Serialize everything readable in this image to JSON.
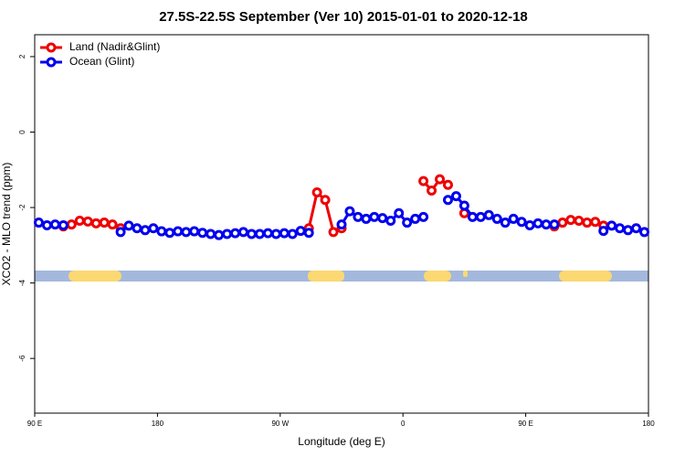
{
  "chart_data": {
    "type": "line",
    "title": "27.5S-22.5S September (Ver 10)   2015-01-01 to 2020-12-18",
    "xlabel": "Longitude (deg E)",
    "ylabel": "XCO2 - MLO trend (ppm)",
    "x": [
      93,
      99,
      105,
      111,
      117,
      123,
      129,
      135,
      141,
      147,
      153,
      159,
      165,
      171,
      177,
      183,
      189,
      195,
      201,
      207,
      213,
      219,
      225,
      231,
      237,
      243,
      249,
      255,
      261,
      267,
      273,
      279,
      285,
      291,
      297,
      303,
      309,
      315,
      321,
      327,
      333,
      339,
      345,
      351,
      357,
      363,
      369,
      375,
      381,
      387,
      393,
      399,
      405,
      411,
      417,
      423,
      429,
      435,
      441,
      447,
      453,
      459,
      465,
      471,
      477,
      483,
      489,
      495,
      501,
      507,
      513,
      519,
      525,
      531,
      537
    ],
    "series": [
      {
        "name": "Land (Nadir&Glint)",
        "color": "#ee0000",
        "values": [
          null,
          null,
          null,
          -2.5,
          -2.45,
          -2.35,
          -2.37,
          -2.42,
          -2.4,
          -2.45,
          -2.55,
          null,
          null,
          null,
          null,
          null,
          null,
          null,
          null,
          null,
          null,
          null,
          null,
          null,
          null,
          null,
          null,
          null,
          null,
          null,
          null,
          null,
          null,
          -2.55,
          -1.6,
          -1.8,
          -2.65,
          -2.55,
          null,
          null,
          null,
          null,
          null,
          null,
          null,
          null,
          null,
          -1.3,
          -1.55,
          -1.25,
          -1.4,
          null,
          -2.15,
          null,
          null,
          null,
          null,
          null,
          null,
          null,
          null,
          null,
          null,
          -2.5,
          -2.4,
          -2.33,
          -2.35,
          -2.4,
          -2.38,
          -2.48,
          null,
          null,
          null,
          null,
          null
        ]
      },
      {
        "name": "Ocean (Glint)",
        "color": "#0000ee",
        "values": [
          -2.4,
          -2.47,
          -2.45,
          -2.47,
          null,
          null,
          null,
          null,
          null,
          null,
          -2.65,
          -2.48,
          -2.55,
          -2.6,
          -2.55,
          -2.63,
          -2.67,
          -2.63,
          -2.65,
          -2.63,
          -2.67,
          -2.7,
          -2.73,
          -2.7,
          -2.68,
          -2.65,
          -2.7,
          -2.7,
          -2.68,
          -2.7,
          -2.68,
          -2.7,
          -2.62,
          -2.67,
          null,
          null,
          null,
          -2.45,
          -2.1,
          -2.25,
          -2.3,
          -2.25,
          -2.28,
          -2.35,
          -2.15,
          -2.4,
          -2.3,
          -2.25,
          null,
          null,
          -1.8,
          -1.7,
          -1.95,
          -2.25,
          -2.25,
          -2.2,
          -2.3,
          -2.4,
          -2.3,
          -2.38,
          -2.47,
          -2.42,
          -2.45,
          -2.45,
          null,
          null,
          null,
          null,
          null,
          -2.62,
          -2.48,
          -2.55,
          -2.6,
          -2.55,
          -2.65
        ]
      }
    ],
    "xlim": [
      90,
      540
    ],
    "xticks": [
      {
        "value": 90,
        "label": "90 E"
      },
      180,
      {
        "value": 270,
        "label": "90 W"
      },
      {
        "value": 360,
        "label": "0"
      },
      {
        "value": 450,
        "label": "90 E"
      },
      180
    ],
    "ylim": [
      -7.45,
      2.58
    ],
    "yticks": [
      2,
      0,
      -2,
      -4,
      -6
    ],
    "legend": "top-left"
  }
}
